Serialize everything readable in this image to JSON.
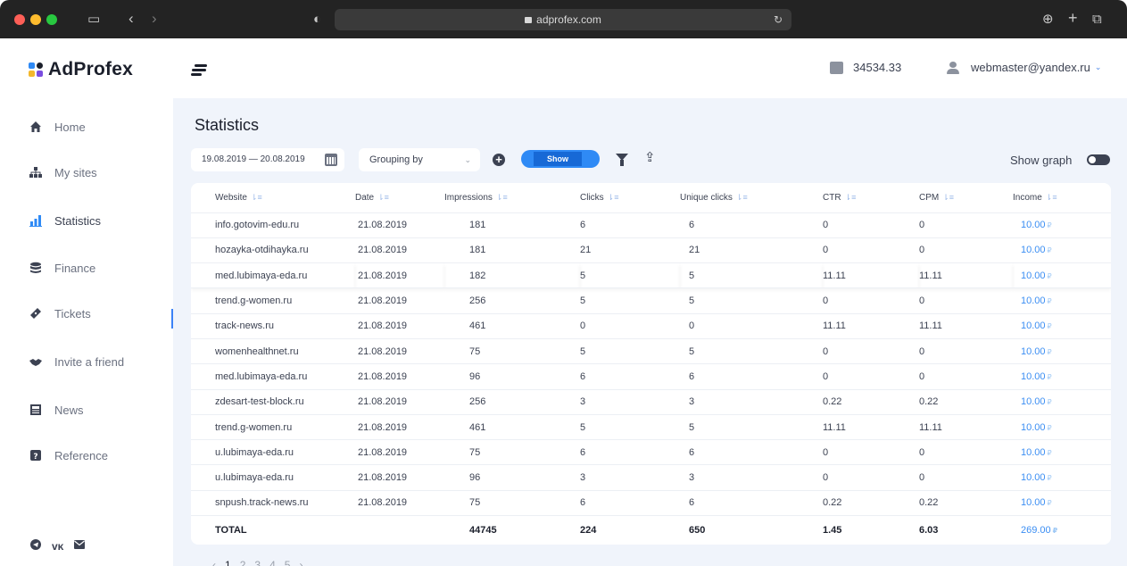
{
  "browser": {
    "url": "adprofex.com"
  },
  "header": {
    "logo_text": "AdProfex",
    "balance": "34534.33",
    "user_email": "webmaster@yandex.ru"
  },
  "sidebar": {
    "items": [
      {
        "label": "Home",
        "icon": "home-icon"
      },
      {
        "label": "My sites",
        "icon": "sitemap-icon"
      },
      {
        "label": "Statistics",
        "icon": "bar-chart-icon"
      },
      {
        "label": "Finance",
        "icon": "database-icon"
      },
      {
        "label": "Tickets",
        "icon": "ticket-icon"
      },
      {
        "label": "Invite a friend",
        "icon": "handshake-icon"
      },
      {
        "label": "News",
        "icon": "newspaper-icon"
      },
      {
        "label": "Reference",
        "icon": "question-icon"
      }
    ],
    "active": "Statistics",
    "socials": [
      "telegram-icon",
      "vk-icon",
      "mail-icon"
    ]
  },
  "main": {
    "title": "Statistics",
    "date_range": "19.08.2019 — 20.08.2019",
    "grouping_placeholder": "Grouping by",
    "show_label": "Show",
    "show_graph_label": "Show graph",
    "accent_color": "#2f8af5"
  },
  "table": {
    "columns": [
      "Website",
      "Date",
      "Impressions",
      "Clicks",
      "Unique clicks",
      "CTR",
      "CPM",
      "Income"
    ],
    "rows": [
      [
        "info.gotovim-edu.ru",
        "21.08.2019",
        "181",
        "6",
        "6",
        "0",
        "0",
        "10.00"
      ],
      [
        "hozayka-otdihayka.ru",
        "21.08.2019",
        "181",
        "21",
        "21",
        "0",
        "0",
        "10.00"
      ],
      [
        "med.lubimaya-eda.ru",
        "21.08.2019",
        "182",
        "5",
        "5",
        "11.11",
        "11.11",
        "10.00"
      ],
      [
        "trend.g-women.ru",
        "21.08.2019",
        "256",
        "5",
        "5",
        "0",
        "0",
        "10.00"
      ],
      [
        "track-news.ru",
        "21.08.2019",
        "461",
        "0",
        "0",
        "11.11",
        "11.11",
        "10.00"
      ],
      [
        "womenhealthnet.ru",
        "21.08.2019",
        "75",
        "5",
        "5",
        "0",
        "0",
        "10.00"
      ],
      [
        "med.lubimaya-eda.ru",
        "21.08.2019",
        "96",
        "6",
        "6",
        "0",
        "0",
        "10.00"
      ],
      [
        "zdesart-test-block.ru",
        "21.08.2019",
        "256",
        "3",
        "3",
        "0.22",
        "0.22",
        "10.00"
      ],
      [
        "trend.g-women.ru",
        "21.08.2019",
        "461",
        "5",
        "5",
        "11.11",
        "11.11",
        "10.00"
      ],
      [
        "u.lubimaya-eda.ru",
        "21.08.2019",
        "75",
        "6",
        "6",
        "0",
        "0",
        "10.00"
      ],
      [
        "u.lubimaya-eda.ru",
        "21.08.2019",
        "96",
        "3",
        "3",
        "0",
        "0",
        "10.00"
      ],
      [
        "snpush.track-news.ru",
        "21.08.2019",
        "75",
        "6",
        "6",
        "0.22",
        "0.22",
        "10.00"
      ]
    ],
    "total": {
      "label": "TOTAL",
      "impressions": "44745",
      "clicks": "224",
      "unique_clicks": "650",
      "ctr": "1.45",
      "cpm": "6.03",
      "income": "269.00"
    },
    "currency_symbol": "₽"
  },
  "pagination": {
    "pages": [
      "1",
      "2",
      "3",
      "4",
      "5"
    ],
    "current": "1"
  }
}
